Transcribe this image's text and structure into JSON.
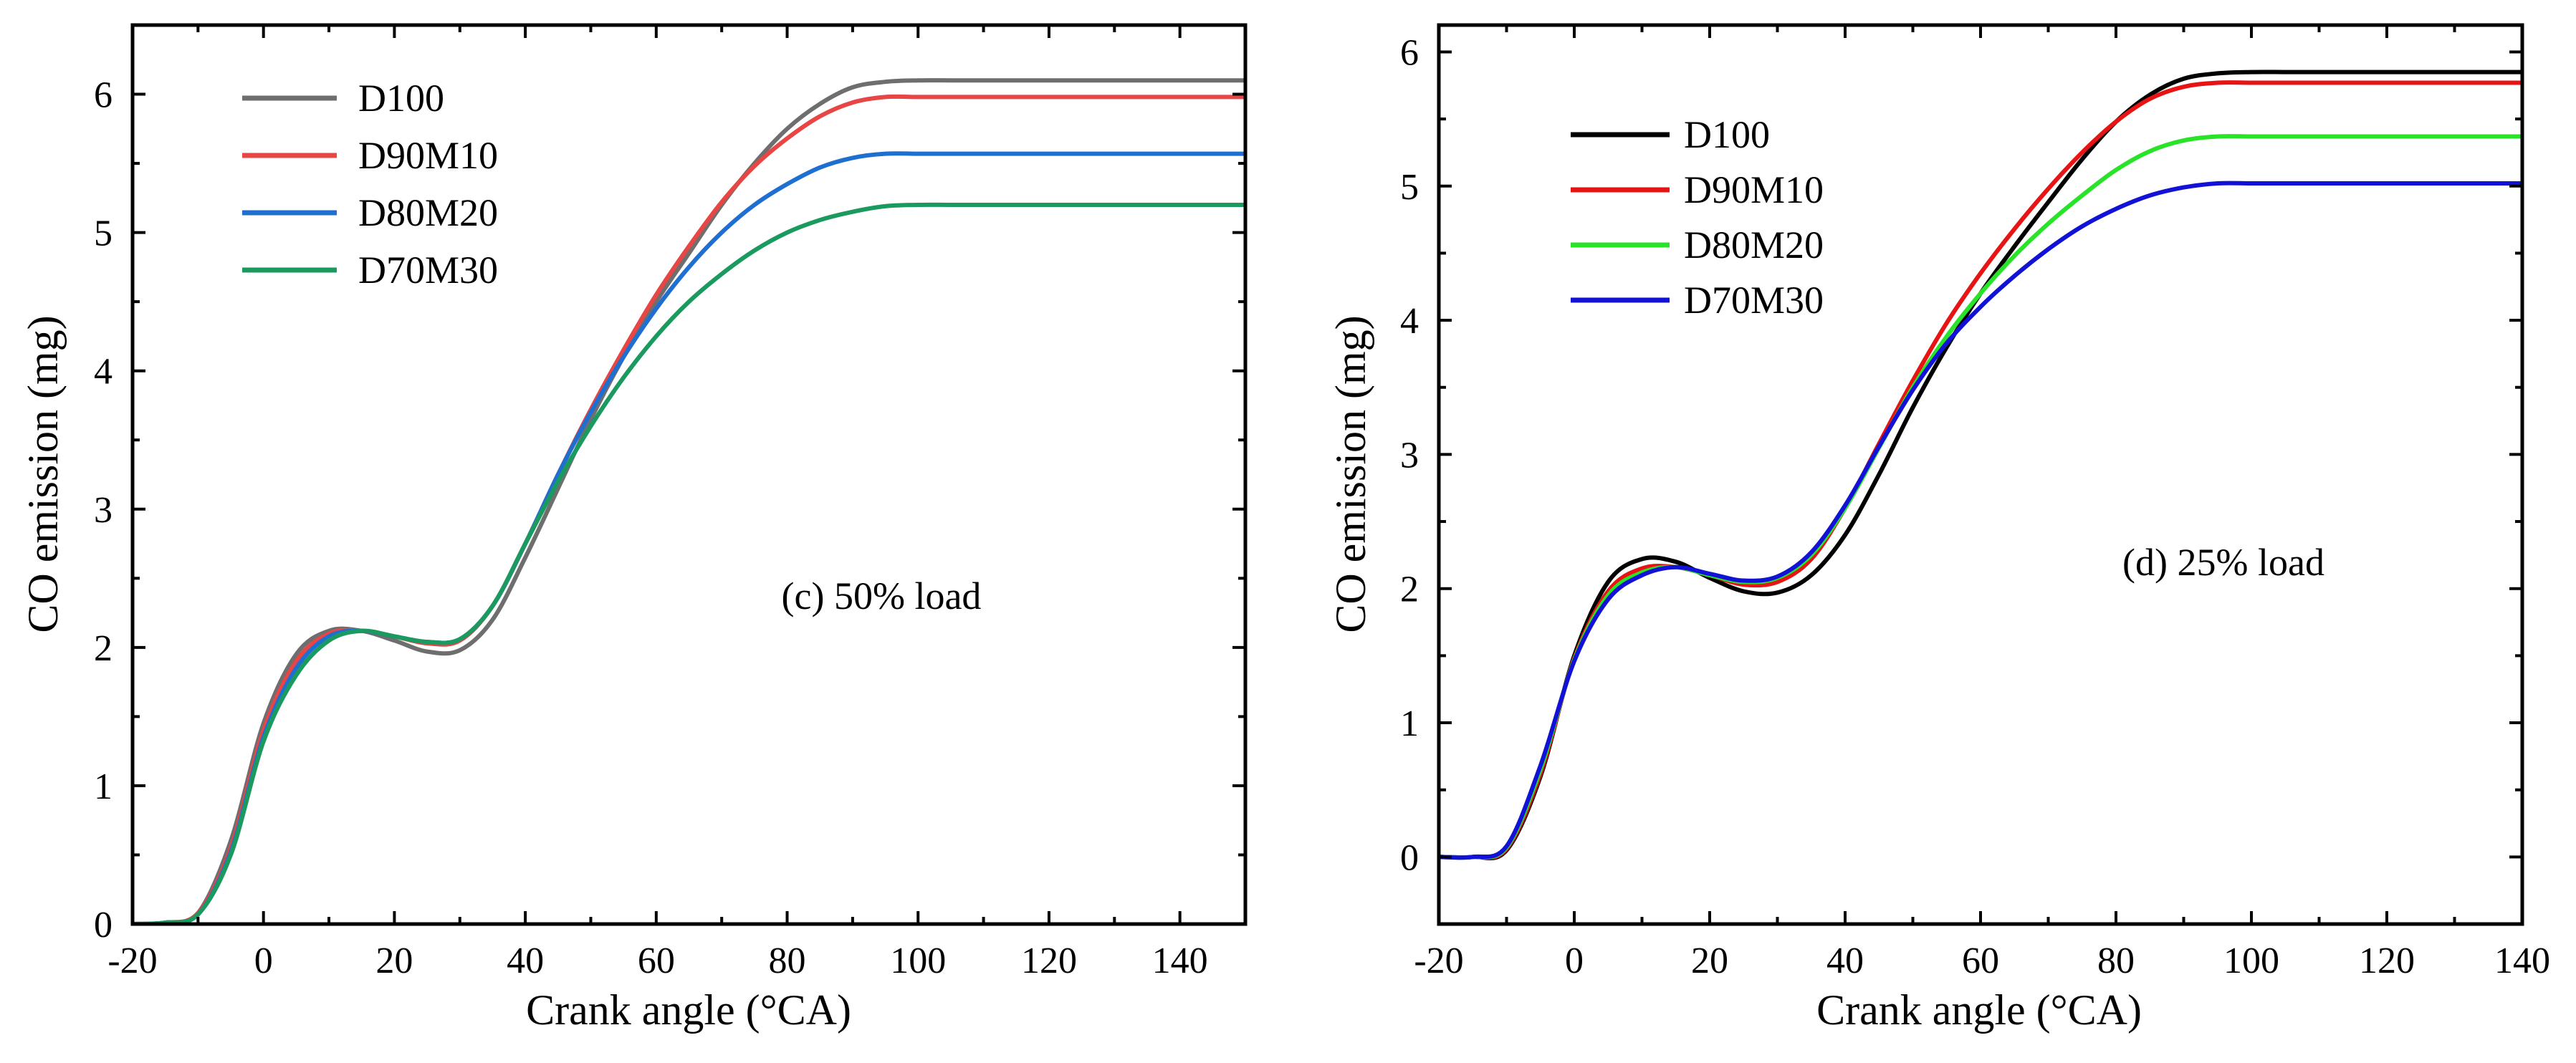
{
  "chart_data": [
    {
      "type": "line",
      "id": "panel-c",
      "annotation": "(c) 50% load",
      "xlabel": "Crank angle (°CA)",
      "ylabel": "CO emission (mg)",
      "xlim": [
        -20,
        150
      ],
      "ylim": [
        0,
        6.5
      ],
      "xticks": [
        -20,
        0,
        20,
        40,
        60,
        80,
        100,
        120,
        140
      ],
      "xtick_labels": [
        "-20",
        "0",
        "20",
        "40",
        "60",
        "80",
        "100",
        "120",
        "140"
      ],
      "yticks": [
        0,
        1,
        2,
        3,
        4,
        5,
        6
      ],
      "ytick_labels": [
        "0",
        "1",
        "2",
        "3",
        "4",
        "5",
        "6"
      ],
      "legend_position": "top-left",
      "x": [
        -20,
        -15,
        -10,
        -5,
        0,
        5,
        10,
        15,
        20,
        25,
        30,
        35,
        40,
        45,
        50,
        55,
        60,
        65,
        70,
        75,
        80,
        85,
        90,
        95,
        100,
        105,
        110,
        115,
        120,
        125,
        130,
        135,
        140,
        145,
        150
      ],
      "series": [
        {
          "name": "D100",
          "color": "#6e6e6e",
          "values": [
            0,
            0.01,
            0.08,
            0.6,
            1.45,
            1.95,
            2.12,
            2.12,
            2.05,
            1.97,
            1.98,
            2.2,
            2.65,
            3.15,
            3.65,
            4.1,
            4.5,
            4.85,
            5.2,
            5.5,
            5.75,
            5.93,
            6.05,
            6.09,
            6.1,
            6.1,
            6.1,
            6.1,
            6.1,
            6.1,
            6.1,
            6.1,
            6.1,
            6.1,
            6.1
          ]
        },
        {
          "name": "D90M10",
          "color": "#e84545",
          "values": [
            0,
            0.01,
            0.08,
            0.55,
            1.4,
            1.9,
            2.1,
            2.12,
            2.08,
            2.03,
            2.05,
            2.3,
            2.75,
            3.25,
            3.72,
            4.15,
            4.55,
            4.9,
            5.22,
            5.48,
            5.68,
            5.84,
            5.94,
            5.98,
            5.98,
            5.98,
            5.98,
            5.98,
            5.98,
            5.98,
            5.98,
            5.98,
            5.98,
            5.98,
            5.98
          ]
        },
        {
          "name": "D80M20",
          "color": "#1f6fd1",
          "values": [
            0,
            0.01,
            0.07,
            0.52,
            1.35,
            1.85,
            2.08,
            2.12,
            2.08,
            2.04,
            2.06,
            2.3,
            2.75,
            3.25,
            3.7,
            4.1,
            4.45,
            4.75,
            5.0,
            5.2,
            5.35,
            5.47,
            5.54,
            5.57,
            5.57,
            5.57,
            5.57,
            5.57,
            5.57,
            5.57,
            5.57,
            5.57,
            5.57,
            5.57,
            5.57
          ]
        },
        {
          "name": "D70M30",
          "color": "#1a9a5e",
          "values": [
            0,
            0.01,
            0.07,
            0.5,
            1.32,
            1.8,
            2.05,
            2.12,
            2.08,
            2.04,
            2.06,
            2.3,
            2.75,
            3.2,
            3.6,
            3.95,
            4.25,
            4.5,
            4.7,
            4.87,
            5.0,
            5.09,
            5.15,
            5.19,
            5.2,
            5.2,
            5.2,
            5.2,
            5.2,
            5.2,
            5.2,
            5.2,
            5.2,
            5.2,
            5.2
          ]
        }
      ]
    },
    {
      "type": "line",
      "id": "panel-d",
      "annotation": "(d) 25% load",
      "xlabel": "Crank angle (°CA)",
      "ylabel": "CO emission (mg)",
      "xlim": [
        -20,
        140
      ],
      "ylim": [
        -0.5,
        6.2
      ],
      "xticks": [
        -20,
        0,
        20,
        40,
        60,
        80,
        100,
        120,
        140
      ],
      "xtick_labels": [
        "-20",
        "0",
        "20",
        "40",
        "60",
        "80",
        "100",
        "120",
        "140"
      ],
      "yticks": [
        0,
        1,
        2,
        3,
        4,
        5,
        6
      ],
      "ytick_labels": [
        "0",
        "1",
        "2",
        "3",
        "4",
        "5",
        "6"
      ],
      "legend_position": "top-left",
      "x": [
        -20,
        -15,
        -10,
        -5,
        0,
        5,
        10,
        15,
        20,
        25,
        30,
        35,
        40,
        45,
        50,
        55,
        60,
        65,
        70,
        75,
        80,
        85,
        90,
        95,
        100,
        105,
        110,
        115,
        120,
        125,
        130,
        135,
        140
      ],
      "series": [
        {
          "name": "D100",
          "color": "#000000",
          "values": [
            0,
            0,
            0.05,
            0.6,
            1.5,
            2.05,
            2.22,
            2.2,
            2.08,
            1.98,
            1.97,
            2.1,
            2.4,
            2.85,
            3.35,
            3.8,
            4.2,
            4.55,
            4.88,
            5.2,
            5.48,
            5.68,
            5.8,
            5.84,
            5.85,
            5.85,
            5.85,
            5.85,
            5.85,
            5.85,
            5.85,
            5.85,
            5.85
          ]
        },
        {
          "name": "D90M10",
          "color": "#e81414",
          "values": [
            0,
            0,
            0.06,
            0.62,
            1.48,
            1.98,
            2.15,
            2.16,
            2.1,
            2.03,
            2.05,
            2.22,
            2.6,
            3.08,
            3.55,
            3.98,
            4.35,
            4.68,
            4.98,
            5.25,
            5.48,
            5.65,
            5.74,
            5.77,
            5.77,
            5.77,
            5.77,
            5.77,
            5.77,
            5.77,
            5.77,
            5.77,
            5.77
          ]
        },
        {
          "name": "D80M20",
          "color": "#29e329",
          "values": [
            0,
            0,
            0.07,
            0.65,
            1.47,
            1.95,
            2.12,
            2.16,
            2.1,
            2.05,
            2.08,
            2.25,
            2.6,
            3.05,
            3.5,
            3.88,
            4.2,
            4.48,
            4.72,
            4.93,
            5.12,
            5.26,
            5.34,
            5.37,
            5.37,
            5.37,
            5.37,
            5.37,
            5.37,
            5.37,
            5.37,
            5.37,
            5.37
          ]
        },
        {
          "name": "D70M30",
          "color": "#1212d6",
          "values": [
            0,
            0,
            0.08,
            0.68,
            1.46,
            1.92,
            2.1,
            2.16,
            2.11,
            2.06,
            2.09,
            2.27,
            2.62,
            3.06,
            3.48,
            3.83,
            4.1,
            4.33,
            4.53,
            4.7,
            4.83,
            4.93,
            4.99,
            5.02,
            5.02,
            5.02,
            5.02,
            5.02,
            5.02,
            5.02,
            5.02,
            5.02,
            5.02
          ]
        }
      ]
    }
  ]
}
